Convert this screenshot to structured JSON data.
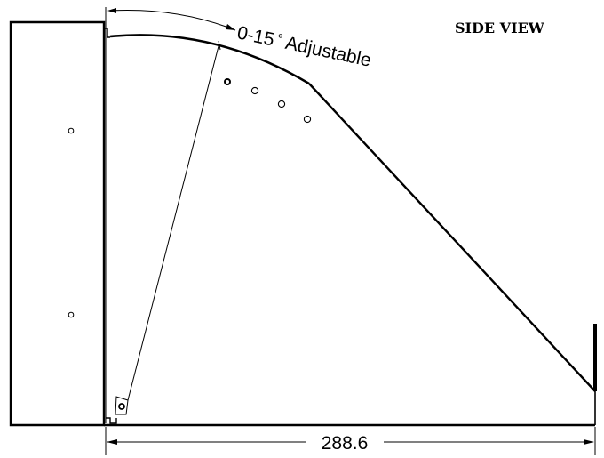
{
  "view_title": "SIDE VIEW",
  "angle_annotation": {
    "angle": "0-15",
    "degree_symbol": "°",
    "label": "Adjustable"
  },
  "dimension": {
    "value": "288.6"
  },
  "colors": {
    "line": "#000000",
    "background": "#ffffff"
  }
}
